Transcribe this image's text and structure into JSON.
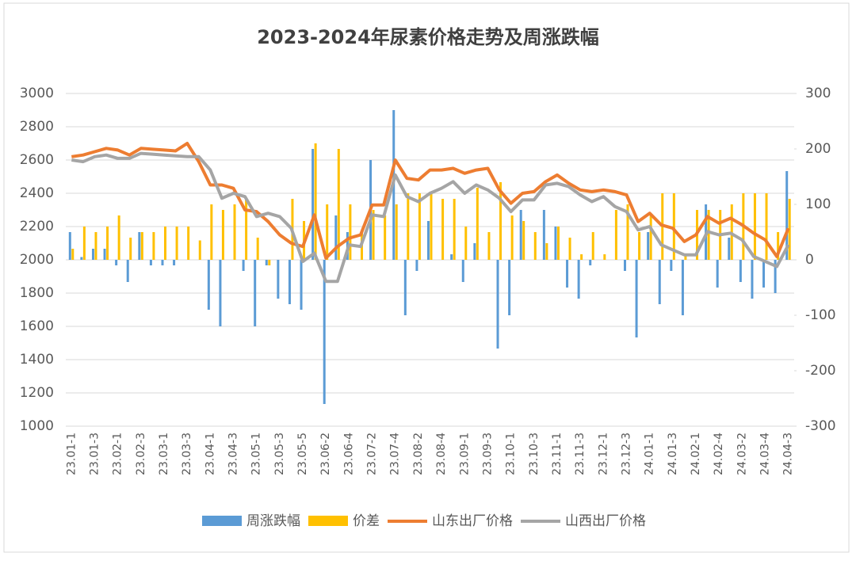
{
  "chart_data": {
    "type": "combo",
    "title": "2023-2024年尿素价格走势及周涨跌幅",
    "categories": [
      "23.01-1",
      null,
      "23.01-3",
      null,
      "23.02-1",
      null,
      "23.02-3",
      null,
      "23.03-1",
      null,
      "23.03-3",
      null,
      "23.04-1",
      null,
      "23.04-3",
      null,
      "23.05-1",
      null,
      "23.05-3",
      null,
      "23.05-5",
      null,
      "23.06-2",
      null,
      "23.06-4",
      null,
      "23.07-2",
      null,
      "23.07-4",
      null,
      "23.08-2",
      null,
      "23.08-4",
      null,
      "23.09-1",
      null,
      "23.09-3",
      null,
      "23.10-1",
      null,
      "23.10-3",
      null,
      "23.11-1",
      null,
      "23.11-3",
      null,
      "23.12-1",
      null,
      "23.12-3",
      null,
      "24.01-1",
      null,
      "24.01-3",
      null,
      "24.02-1",
      null,
      "24.02-4",
      null,
      "24.03-2",
      null,
      "24.03-4",
      null,
      "24.04-3"
    ],
    "series": [
      {
        "name": "周涨跌幅",
        "kind": "bar",
        "axis": "y2",
        "color": "#5b9bd5",
        "values": [
          50,
          5,
          20,
          20,
          -10,
          -40,
          50,
          -10,
          -10,
          -10,
          0,
          0,
          -90,
          -120,
          0,
          -20,
          -120,
          -10,
          -70,
          -80,
          -90,
          200,
          -260,
          80,
          50,
          0,
          180,
          0,
          270,
          -100,
          -20,
          70,
          0,
          10,
          -40,
          30,
          0,
          -160,
          -100,
          90,
          0,
          90,
          60,
          -50,
          -70,
          -10,
          0,
          0,
          -20,
          -140,
          50,
          -80,
          -20,
          -100,
          0,
          100,
          -50,
          40,
          -40,
          -70,
          -50,
          -60,
          160
        ]
      },
      {
        "name": "价差",
        "kind": "bar",
        "axis": "y2",
        "color": "#ffc000",
        "values": [
          20,
          60,
          50,
          60,
          80,
          40,
          50,
          50,
          60,
          60,
          60,
          35,
          100,
          90,
          100,
          110,
          40,
          -10,
          0,
          110,
          70,
          210,
          100,
          200,
          100,
          50,
          90,
          80,
          100,
          120,
          120,
          120,
          110,
          110,
          60,
          130,
          50,
          140,
          80,
          70,
          50,
          30,
          60,
          40,
          10,
          50,
          10,
          90,
          100,
          50,
          80,
          120,
          120,
          10,
          90,
          90,
          90,
          100,
          120,
          120,
          120,
          50,
          110
        ]
      },
      {
        "name": "山东出厂价格",
        "kind": "line",
        "color": "#ed7d31",
        "values": [
          2620,
          2630,
          2650,
          2670,
          2660,
          2630,
          2670,
          2665,
          2660,
          2655,
          2700,
          2590,
          2450,
          2450,
          2430,
          2300,
          2290,
          2230,
          2150,
          2100,
          2080,
          2270,
          2010,
          2080,
          2130,
          2150,
          2330,
          2330,
          2600,
          2490,
          2480,
          2540,
          2540,
          2550,
          2520,
          2540,
          2550,
          2420,
          2340,
          2400,
          2410,
          2470,
          2510,
          2460,
          2420,
          2410,
          2420,
          2410,
          2390,
          2230,
          2280,
          2210,
          2190,
          2110,
          2150,
          2260,
          2220,
          2250,
          2210,
          2160,
          2120,
          2020,
          2190
        ]
      },
      {
        "name": "山西出厂价格",
        "kind": "line",
        "color": "#a5a5a5",
        "values": [
          2600,
          2590,
          2620,
          2630,
          2610,
          2610,
          2640,
          2635,
          2630,
          2625,
          2620,
          2620,
          2540,
          2370,
          2400,
          2380,
          2260,
          2280,
          2260,
          2190,
          1990,
          2040,
          1870,
          1870,
          2090,
          2080,
          2270,
          2260,
          2510,
          2380,
          2350,
          2400,
          2430,
          2470,
          2400,
          2450,
          2420,
          2370,
          2290,
          2360,
          2360,
          2450,
          2460,
          2440,
          2390,
          2350,
          2380,
          2320,
          2290,
          2180,
          2200,
          2090,
          2060,
          2030,
          2030,
          2170,
          2150,
          2160,
          2120,
          2020,
          1990,
          1960,
          2090
        ]
      }
    ],
    "ylim": [
      1000,
      3000
    ],
    "yticks": [
      1000,
      1200,
      1400,
      1600,
      1800,
      2000,
      2200,
      2400,
      2600,
      2800,
      3000
    ],
    "y2lim": [
      -300,
      300
    ],
    "y2ticks": [
      -300,
      -200,
      -100,
      0,
      100,
      200,
      300
    ],
    "grid": true,
    "legend": "bottom"
  }
}
